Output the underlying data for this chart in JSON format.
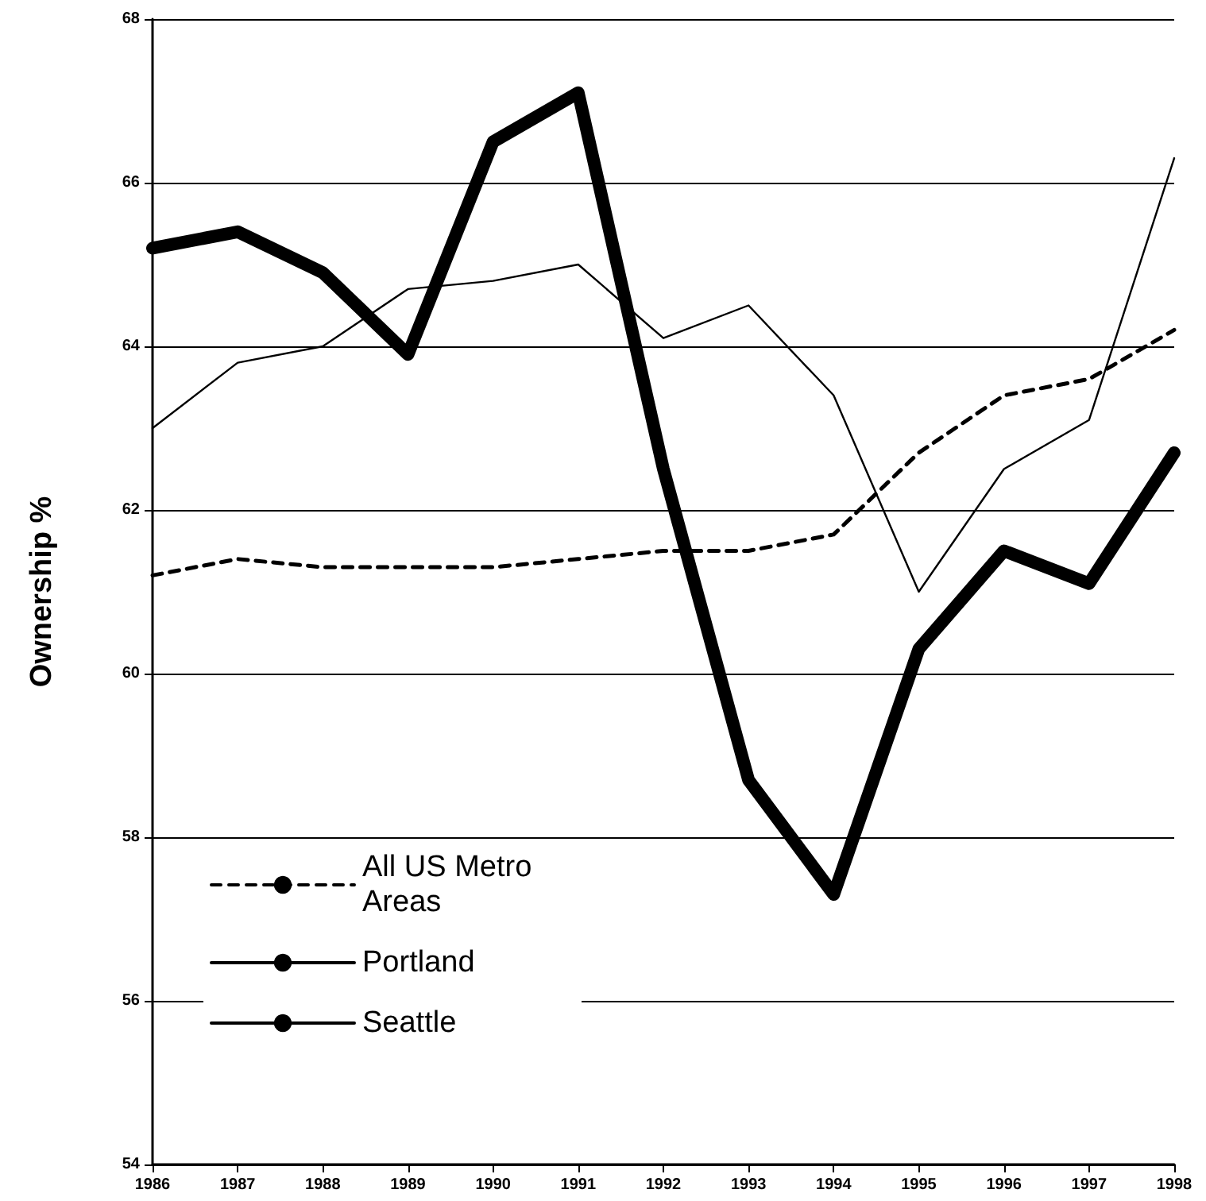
{
  "chart_data": {
    "type": "line",
    "ylabel": "Ownership %",
    "categories": [
      "1986",
      "1987",
      "1988",
      "1989",
      "1990",
      "1991",
      "1992",
      "1993",
      "1994",
      "1995",
      "1996",
      "1997",
      "1998"
    ],
    "series": [
      {
        "name": "All US Metro Areas",
        "color": "#000000",
        "line_style": "dashed",
        "values": [
          61.2,
          61.4,
          61.3,
          61.3,
          61.3,
          61.4,
          61.5,
          61.5,
          61.7,
          62.7,
          63.4,
          63.6,
          64.2
        ]
      },
      {
        "name": "Portland",
        "color": "#000000",
        "line_style": "solid",
        "values": [
          65.2,
          65.4,
          64.9,
          63.9,
          66.5,
          67.1,
          62.5,
          58.7,
          57.3,
          60.3,
          61.5,
          61.1,
          62.7
        ]
      },
      {
        "name": "Seattle",
        "color": "#000000",
        "line_style": "solid",
        "values": [
          63.0,
          63.8,
          64.0,
          64.7,
          64.8,
          65.0,
          64.1,
          64.5,
          63.4,
          61.0,
          62.5,
          63.1,
          66.3
        ]
      }
    ],
    "ylim": [
      54,
      68
    ],
    "yticks": [
      54,
      56,
      58,
      60,
      62,
      64,
      66,
      68
    ],
    "grid": "y",
    "legend": "bottom left",
    "marker": "none"
  }
}
